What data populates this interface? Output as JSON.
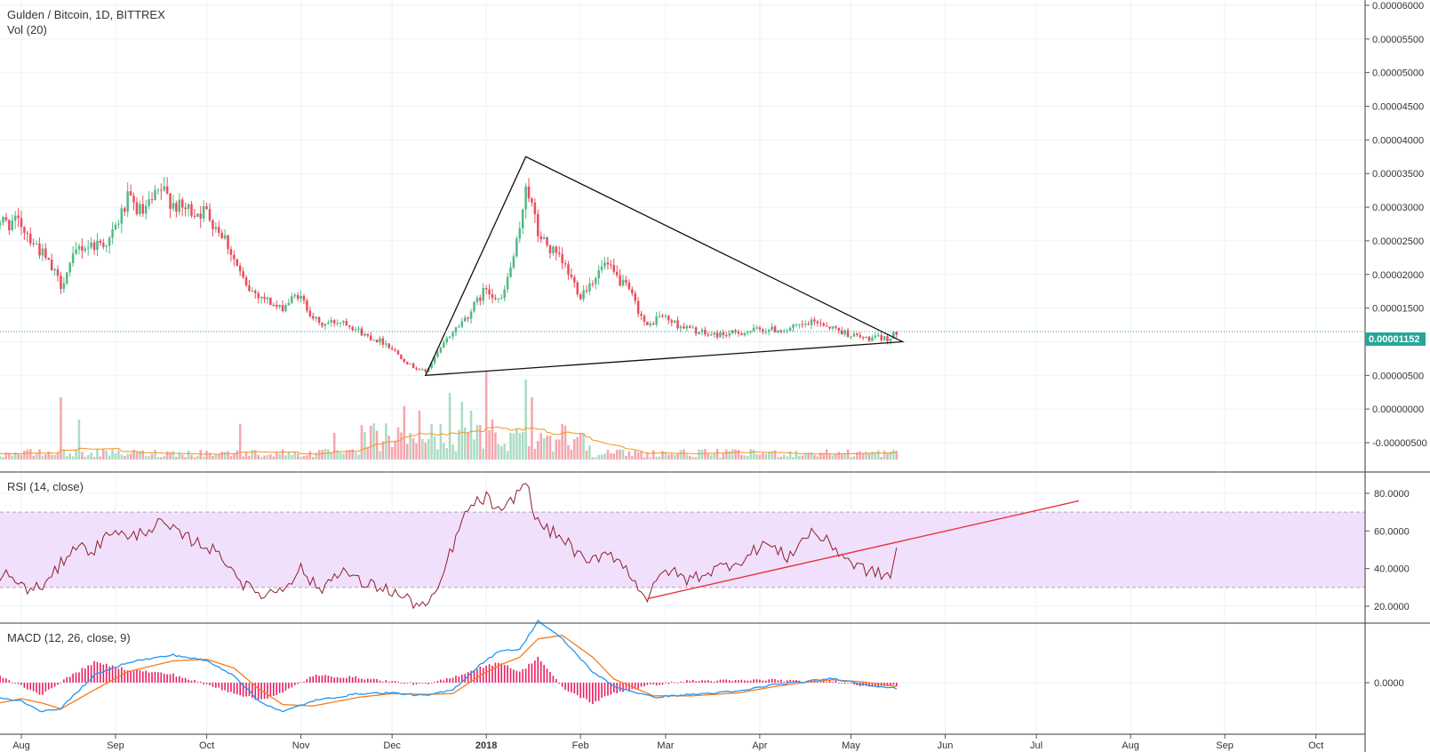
{
  "header": {
    "title": "Gulden / Bitcoin, 1D, BITTREX",
    "vol_label": "Vol (20)",
    "rsi_label": "RSI (14, close)",
    "macd_label": "MACD (12, 26, close, 9)"
  },
  "price_badge": "0.00001152",
  "colors": {
    "up": "#53b987",
    "down": "#eb4d5c",
    "vol_up": "#a9dcc3",
    "vol_down": "#f5a6ae",
    "vol_ma": "#f7941d",
    "rsi_line": "#8e1f2e",
    "rsi_band": "#f1e0fb",
    "rsi_trend": "#e8333b",
    "macd_line": "#2196f3",
    "signal_line": "#f57c20",
    "histogram": "#e91e63",
    "badge": "#26a69a",
    "grid": "#eef1f4"
  },
  "chart_data": [
    {
      "type": "candlestick",
      "title": "Gulden / Bitcoin, 1D, BITTREX",
      "x_ticks": [
        "Aug",
        "Sep",
        "Oct",
        "Nov",
        "Dec",
        "2018",
        "Feb",
        "Mar",
        "Apr",
        "May",
        "Jun",
        "Jul",
        "Aug",
        "Sep",
        "Oct"
      ],
      "y_ticks": [
        "0.00006000",
        "0.00005500",
        "0.00005000",
        "0.00004500",
        "0.00004000",
        "0.00003500",
        "0.00003000",
        "0.00002500",
        "0.00002000",
        "0.00001500",
        "0.00001000",
        "0.00000500",
        "0.00000000",
        "-0.00000500"
      ],
      "ylim": [
        -7.5e-06,
        6e-05
      ],
      "grid": true,
      "last_price": 1.152e-05,
      "close_anchors": [
        [
          "2017-07-22",
          2.8e-05
        ],
        [
          "2017-08-01",
          2.75e-05
        ],
        [
          "2017-08-08",
          2.3e-05
        ],
        [
          "2017-08-14",
          1.85e-05
        ],
        [
          "2017-08-20",
          2.4e-05
        ],
        [
          "2017-08-30",
          2.5e-05
        ],
        [
          "2017-09-05",
          3.1e-05
        ],
        [
          "2017-09-10",
          2.9e-05
        ],
        [
          "2017-09-16",
          3.25e-05
        ],
        [
          "2017-09-22",
          2.98e-05
        ],
        [
          "2017-10-01",
          2.92e-05
        ],
        [
          "2017-10-07",
          2.55e-05
        ],
        [
          "2017-10-14",
          1.8e-05
        ],
        [
          "2017-10-20",
          1.65e-05
        ],
        [
          "2017-10-25",
          1.48e-05
        ],
        [
          "2017-10-31",
          1.7e-05
        ],
        [
          "2017-11-07",
          1.25e-05
        ],
        [
          "2017-11-15",
          1.32e-05
        ],
        [
          "2017-11-22",
          1.1e-05
        ],
        [
          "2017-11-29",
          9.8e-06
        ],
        [
          "2017-12-07",
          6.5e-06
        ],
        [
          "2017-12-12",
          5.5e-06
        ],
        [
          "2017-12-20",
          1.1e-05
        ],
        [
          "2017-12-26",
          1.4e-05
        ],
        [
          "2018-01-01",
          1.8e-05
        ],
        [
          "2018-01-06",
          1.6e-05
        ],
        [
          "2018-01-12",
          2.6e-05
        ],
        [
          "2018-01-14",
          3.4e-05
        ],
        [
          "2018-01-18",
          2.6e-05
        ],
        [
          "2018-01-27",
          2.1e-05
        ],
        [
          "2018-02-01",
          1.7e-05
        ],
        [
          "2018-02-09",
          2.15e-05
        ],
        [
          "2018-02-17",
          1.75e-05
        ],
        [
          "2018-02-23",
          1.2e-05
        ],
        [
          "2018-02-27",
          1.4e-05
        ],
        [
          "2018-03-05",
          1.25e-05
        ],
        [
          "2018-03-15",
          1.1e-05
        ],
        [
          "2018-03-23",
          1.12e-05
        ],
        [
          "2018-04-01",
          1.18e-05
        ],
        [
          "2018-04-10",
          1.18e-05
        ],
        [
          "2018-04-20",
          1.3e-05
        ],
        [
          "2018-04-28",
          1.15e-05
        ],
        [
          "2018-05-05",
          1.05e-05
        ],
        [
          "2018-05-14",
          1.05e-05
        ],
        [
          "2018-05-16",
          1.15e-05
        ]
      ],
      "triangle": [
        [
          "2017-12-12",
          5e-06
        ],
        [
          "2018-01-14",
          3.75e-05
        ],
        [
          "2018-05-18",
          1e-05
        ]
      ],
      "volume_indicator": "Vol (20)"
    },
    {
      "type": "line",
      "title": "RSI (14, close)",
      "y_ticks": [
        "80.0000",
        "60.0000",
        "40.0000",
        "20.0000"
      ],
      "ylim": [
        10,
        90
      ],
      "bands": [
        30,
        70
      ],
      "rsi_anchors": [
        [
          "2017-07-22",
          38
        ],
        [
          "2017-07-28",
          36
        ],
        [
          "2017-08-04",
          28
        ],
        [
          "2017-08-10",
          33
        ],
        [
          "2017-08-18",
          52
        ],
        [
          "2017-08-25",
          50
        ],
        [
          "2017-09-01",
          62
        ],
        [
          "2017-09-05",
          55
        ],
        [
          "2017-09-10",
          60
        ],
        [
          "2017-09-16",
          64
        ],
        [
          "2017-09-22",
          58
        ],
        [
          "2017-10-01",
          52
        ],
        [
          "2017-10-07",
          45
        ],
        [
          "2017-10-14",
          30
        ],
        [
          "2017-10-20",
          26
        ],
        [
          "2017-10-26",
          30
        ],
        [
          "2017-11-01",
          40
        ],
        [
          "2017-11-07",
          28
        ],
        [
          "2017-11-14",
          40
        ],
        [
          "2017-11-21",
          32
        ],
        [
          "2017-11-28",
          30
        ],
        [
          "2017-12-08",
          22
        ],
        [
          "2017-12-12",
          20
        ],
        [
          "2017-12-15",
          24
        ],
        [
          "2017-12-21",
          52
        ],
        [
          "2017-12-26",
          72
        ],
        [
          "2018-01-01",
          78
        ],
        [
          "2018-01-06",
          68
        ],
        [
          "2018-01-10",
          78
        ],
        [
          "2018-01-14",
          86
        ],
        [
          "2018-01-18",
          64
        ],
        [
          "2018-01-27",
          55
        ],
        [
          "2018-02-03",
          42
        ],
        [
          "2018-02-10",
          50
        ],
        [
          "2018-02-17",
          38
        ],
        [
          "2018-02-23",
          24
        ],
        [
          "2018-03-01",
          40
        ],
        [
          "2018-03-08",
          34
        ],
        [
          "2018-03-18",
          40
        ],
        [
          "2018-03-28",
          46
        ],
        [
          "2018-04-02",
          54
        ],
        [
          "2018-04-10",
          46
        ],
        [
          "2018-04-18",
          60
        ],
        [
          "2018-04-25",
          52
        ],
        [
          "2018-05-02",
          42
        ],
        [
          "2018-05-08",
          38
        ],
        [
          "2018-05-14",
          36
        ],
        [
          "2018-05-16",
          50
        ]
      ],
      "trendline": [
        [
          "2018-02-23",
          24
        ],
        [
          "2018-07-15",
          76
        ]
      ]
    },
    {
      "type": "line",
      "title": "MACD (12, 26, close, 9)",
      "y_ticks": [
        "0.0000"
      ],
      "series": [
        {
          "anchors": [
            [
              "2017-07-22",
              -2.0
            ],
            [
              "2017-08-01",
              -2.5
            ],
            [
              "2017-08-08",
              -4.0
            ],
            [
              "2017-08-14",
              -3.5
            ],
            [
              "2017-08-25",
              1.0
            ],
            [
              "2017-09-05",
              2.8
            ],
            [
              "2017-09-20",
              3.8
            ],
            [
              "2017-10-01",
              3.0
            ],
            [
              "2017-10-10",
              1.0
            ],
            [
              "2017-10-18",
              -2.5
            ],
            [
              "2017-10-26",
              -4.0
            ],
            [
              "2017-11-05",
              -2.5
            ],
            [
              "2017-11-20",
              -1.5
            ],
            [
              "2017-12-01",
              -1.4
            ],
            [
              "2017-12-12",
              -1.8
            ],
            [
              "2017-12-21",
              -1.0
            ],
            [
              "2017-12-30",
              2.5
            ],
            [
              "2018-01-06",
              4.5
            ],
            [
              "2018-01-12",
              4.5
            ],
            [
              "2018-01-18",
              8.5
            ],
            [
              "2018-01-26",
              6.0
            ],
            [
              "2018-02-05",
              1.5
            ],
            [
              "2018-02-12",
              -0.5
            ],
            [
              "2018-02-25",
              -2.0
            ],
            [
              "2018-03-10",
              -1.6
            ],
            [
              "2018-03-25",
              -1.2
            ],
            [
              "2018-04-05",
              -0.3
            ],
            [
              "2018-04-15",
              0.1
            ],
            [
              "2018-04-25",
              0.6
            ],
            [
              "2018-05-05",
              -0.2
            ],
            [
              "2018-05-16",
              -0.8
            ]
          ]
        },
        {
          "anchors": [
            [
              "2017-07-22",
              -3.0
            ],
            [
              "2017-08-01",
              -2.2
            ],
            [
              "2017-08-08",
              -2.8
            ],
            [
              "2017-08-14",
              -3.6
            ],
            [
              "2017-08-25",
              -1.0
            ],
            [
              "2017-09-05",
              1.5
            ],
            [
              "2017-09-20",
              3.0
            ],
            [
              "2017-10-01",
              3.2
            ],
            [
              "2017-10-10",
              2.0
            ],
            [
              "2017-10-18",
              -0.8
            ],
            [
              "2017-10-26",
              -3.0
            ],
            [
              "2017-11-05",
              -3.2
            ],
            [
              "2017-11-20",
              -2.0
            ],
            [
              "2017-12-01",
              -1.5
            ],
            [
              "2017-12-12",
              -1.6
            ],
            [
              "2017-12-21",
              -1.5
            ],
            [
              "2017-12-30",
              1.0
            ],
            [
              "2018-01-06",
              2.5
            ],
            [
              "2018-01-12",
              3.5
            ],
            [
              "2018-01-18",
              6.0
            ],
            [
              "2018-01-26",
              6.5
            ],
            [
              "2018-02-05",
              3.5
            ],
            [
              "2018-02-12",
              0.5
            ],
            [
              "2018-02-25",
              -1.8
            ],
            [
              "2018-03-10",
              -1.8
            ],
            [
              "2018-03-25",
              -1.4
            ],
            [
              "2018-04-05",
              -0.6
            ],
            [
              "2018-04-15",
              0.0
            ],
            [
              "2018-04-25",
              0.4
            ],
            [
              "2018-05-05",
              0.1
            ],
            [
              "2018-05-16",
              -0.5
            ]
          ]
        }
      ]
    }
  ]
}
